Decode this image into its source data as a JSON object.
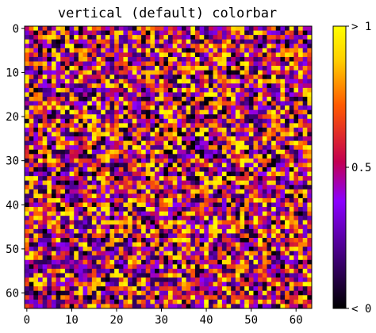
{
  "chart_data": {
    "type": "heatmap",
    "title": "vertical (default) colorbar",
    "grid_size": [
      64,
      64
    ],
    "value_range": [
      0,
      1
    ],
    "distribution": "random uniform noise",
    "colormap": "gnuplot",
    "x_ticks": [
      "0",
      "10",
      "20",
      "30",
      "40",
      "50",
      "60"
    ],
    "y_ticks": [
      "0",
      "10",
      "20",
      "30",
      "40",
      "50",
      "60"
    ],
    "colorbar": {
      "orientation": "vertical",
      "ticks": [
        "< 0",
        "0.5",
        "> 1"
      ]
    }
  },
  "colors": {
    "colormap_stops": [
      "#000000",
      "#400078",
      "#8b00ff",
      "#c20050",
      "#ff5a00",
      "#ffcf00",
      "#ffff00"
    ]
  }
}
